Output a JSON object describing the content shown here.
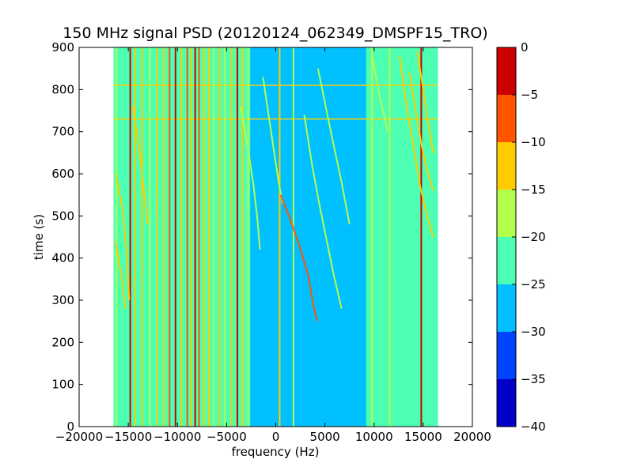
{
  "chart_data": {
    "type": "heatmap",
    "title": "150 MHz signal PSD (20120124_062349_DMSPF15_TRO)",
    "xlabel": "frequency (Hz)",
    "ylabel": "time (s)",
    "xlim": [
      -20000,
      20000
    ],
    "ylim": [
      0,
      900
    ],
    "xticks": [
      -20000,
      -15000,
      -10000,
      -5000,
      0,
      5000,
      10000,
      15000,
      20000
    ],
    "yticks": [
      0,
      100,
      200,
      300,
      400,
      500,
      600,
      700,
      800,
      900
    ],
    "data_extent": {
      "x": [
        -16500,
        16500
      ],
      "y": [
        0,
        900
      ]
    },
    "grid": false,
    "colorbar": {
      "levels": [
        -40,
        -35,
        -30,
        -25,
        -20,
        -15,
        -10,
        -5,
        0
      ],
      "tick_labels": [
        "0",
        "−5",
        "−10",
        "−15",
        "−20",
        "−25",
        "−30",
        "−35",
        "−40"
      ],
      "colors": [
        "#0000c8",
        "#0044ff",
        "#00c0ff",
        "#4dffb3",
        "#b3ff4d",
        "#ffcc00",
        "#ff5500",
        "#cc0000"
      ]
    },
    "background_level": -22,
    "vertical_lines": [
      {
        "x": -16200,
        "level": -20
      },
      {
        "x": -14800,
        "level": -5
      },
      {
        "x": -14300,
        "level": -15
      },
      {
        "x": -13600,
        "level": -15
      },
      {
        "x": -12800,
        "level": -20
      },
      {
        "x": -12100,
        "level": -15
      },
      {
        "x": -11400,
        "level": -15
      },
      {
        "x": -10800,
        "level": -10
      },
      {
        "x": -10200,
        "level": -5
      },
      {
        "x": -9600,
        "level": -15
      },
      {
        "x": -9000,
        "level": -10
      },
      {
        "x": -8600,
        "level": -15
      },
      {
        "x": -8200,
        "level": 0
      },
      {
        "x": -7800,
        "level": -10
      },
      {
        "x": -7300,
        "level": -15
      },
      {
        "x": -6800,
        "level": -15
      },
      {
        "x": -6300,
        "level": -20
      },
      {
        "x": -5700,
        "level": -15
      },
      {
        "x": -5200,
        "level": -20
      },
      {
        "x": -4500,
        "level": -15
      },
      {
        "x": -3900,
        "level": -5
      },
      {
        "x": -3400,
        "level": -15
      },
      {
        "x": -2800,
        "level": -20
      },
      {
        "x": 400,
        "level": -15
      },
      {
        "x": 1800,
        "level": -20
      },
      {
        "x": 9800,
        "level": -20
      },
      {
        "x": 11600,
        "level": -20
      },
      {
        "x": 14800,
        "level": -5
      }
    ],
    "tracks": [
      {
        "points": [
          [
            -16300,
            600
          ],
          [
            -15600,
            520
          ],
          [
            -15200,
            420
          ],
          [
            -14900,
            300
          ]
        ],
        "level": -15
      },
      {
        "points": [
          [
            -16300,
            440
          ],
          [
            -15700,
            360
          ],
          [
            -15300,
            280
          ]
        ],
        "level": -15
      },
      {
        "points": [
          [
            -14500,
            760
          ],
          [
            -13900,
            660
          ],
          [
            -13400,
            560
          ],
          [
            -13000,
            480
          ]
        ],
        "level": -15
      },
      {
        "points": [
          [
            -3600,
            760
          ],
          [
            -2900,
            670
          ],
          [
            -2300,
            580
          ],
          [
            -1900,
            500
          ],
          [
            -1600,
            420
          ]
        ],
        "level": -20
      },
      {
        "points": [
          [
            -1300,
            830
          ],
          [
            -600,
            720
          ],
          [
            -100,
            640
          ],
          [
            300,
            580
          ],
          [
            700,
            530
          ]
        ],
        "level": -20
      },
      {
        "points": [
          [
            500,
            550
          ],
          [
            1500,
            490
          ],
          [
            2400,
            430
          ],
          [
            3300,
            360
          ],
          [
            3800,
            290
          ],
          [
            4200,
            250
          ]
        ],
        "level": -10
      },
      {
        "points": [
          [
            2900,
            740
          ],
          [
            3700,
            620
          ],
          [
            4500,
            520
          ],
          [
            5200,
            440
          ],
          [
            5900,
            360
          ],
          [
            6700,
            280
          ]
        ],
        "level": -20
      },
      {
        "points": [
          [
            4300,
            850
          ],
          [
            5600,
            700
          ],
          [
            6700,
            580
          ],
          [
            7500,
            480
          ]
        ],
        "level": -20
      },
      {
        "points": [
          [
            9800,
            880
          ],
          [
            10600,
            780
          ],
          [
            11400,
            700
          ]
        ],
        "level": -20
      },
      {
        "points": [
          [
            12600,
            880
          ],
          [
            13300,
            760
          ],
          [
            13900,
            680
          ],
          [
            14700,
            570
          ],
          [
            15400,
            500
          ],
          [
            16000,
            450
          ]
        ],
        "level": -15
      },
      {
        "points": [
          [
            13600,
            840
          ],
          [
            14300,
            740
          ],
          [
            14900,
            660
          ],
          [
            15500,
            600
          ],
          [
            16000,
            560
          ]
        ],
        "level": -15
      },
      {
        "points": [
          [
            14400,
            890
          ],
          [
            14800,
            830
          ],
          [
            15500,
            720
          ],
          [
            16000,
            650
          ]
        ],
        "level": -15
      }
    ],
    "horizontal_lines": [
      {
        "y": 730,
        "level": -15
      },
      {
        "y": 810,
        "level": -15
      }
    ]
  }
}
